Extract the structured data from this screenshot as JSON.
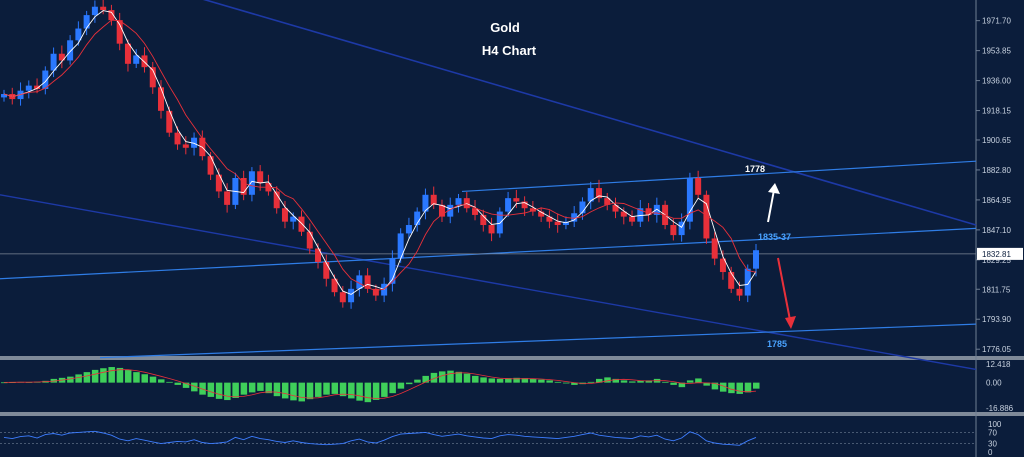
{
  "chart_data": {
    "type": "candlestick",
    "title": "Gold",
    "subtitle": "H4 Chart",
    "price_axis": {
      "ticks": [
        "1971.70",
        "1953.85",
        "1936.00",
        "1918.15",
        "1900.65",
        "1882.80",
        "1864.95",
        "1847.10",
        "1829.25",
        "1811.75",
        "1793.90",
        "1776.05"
      ],
      "tick_values": [
        1971.7,
        1953.85,
        1936.0,
        1918.15,
        1900.65,
        1882.8,
        1864.95,
        1847.1,
        1829.25,
        1811.75,
        1793.9,
        1776.05
      ],
      "ylim": [
        1772.0,
        1984.0
      ],
      "current_price": "1832.81",
      "current_value": 1832.81
    },
    "close_path": [
      1928,
      1925,
      1930,
      1933,
      1931,
      1942,
      1952,
      1948,
      1960,
      1967,
      1975,
      1980,
      1978,
      1972,
      1958,
      1946,
      1951,
      1944,
      1932,
      1918,
      1905,
      1898,
      1896,
      1902,
      1891,
      1880,
      1870,
      1862,
      1878,
      1868,
      1882,
      1875,
      1870,
      1860,
      1852,
      1855,
      1846,
      1836,
      1828,
      1818,
      1810,
      1804,
      1812,
      1820,
      1812,
      1808,
      1815,
      1830,
      1845,
      1850,
      1858,
      1868,
      1862,
      1855,
      1862,
      1866,
      1860,
      1856,
      1850,
      1845,
      1858,
      1866,
      1864,
      1860,
      1858,
      1855,
      1852,
      1850,
      1852,
      1857,
      1864,
      1872,
      1866,
      1862,
      1858,
      1855,
      1852,
      1860,
      1856,
      1862,
      1850,
      1844,
      1852,
      1878,
      1868,
      1842,
      1830,
      1822,
      1812,
      1808,
      1824,
      1835
    ],
    "annotations": [
      {
        "text": "1778",
        "color": "#ffffff"
      },
      {
        "text": "1835-37",
        "color": "#4aa3ff"
      },
      {
        "text": "1785",
        "color": "#4aa3ff"
      }
    ],
    "indicator_macd": {
      "ticks": [
        "12.418",
        "0.00",
        "-16.886"
      ],
      "histogram": [
        0.2,
        0.3,
        0.5,
        0.4,
        0.6,
        1.2,
        2.5,
        3.2,
        4.0,
        5.5,
        7.0,
        8.5,
        9.6,
        10.4,
        9.8,
        8.4,
        7.0,
        5.6,
        4.0,
        2.2,
        0.5,
        -1.5,
        -3.5,
        -5.8,
        -8.0,
        -9.5,
        -10.8,
        -11.6,
        -10.2,
        -8.0,
        -6.5,
        -5.5,
        -7.0,
        -9.0,
        -10.5,
        -11.8,
        -12.5,
        -11.0,
        -9.5,
        -8.0,
        -7.5,
        -9.0,
        -10.5,
        -12.0,
        -13.0,
        -11.5,
        -9.5,
        -7.0,
        -4.0,
        -1.0,
        2.0,
        4.5,
        6.5,
        7.5,
        8.0,
        7.2,
        6.0,
        4.5,
        3.5,
        2.8,
        2.5,
        3.0,
        3.2,
        3.0,
        2.6,
        2.0,
        1.5,
        0.5,
        -0.5,
        -1.5,
        -1.0,
        0.5,
        2.5,
        3.5,
        2.5,
        1.5,
        0.8,
        1.2,
        1.5,
        2.5,
        0.5,
        -1.5,
        -3.0,
        1.5,
        2.8,
        -2.0,
        -4.5,
        -6.0,
        -7.0,
        -7.5,
        -6.5,
        -4.0
      ],
      "ylim": [
        -16.886,
        12.418
      ]
    },
    "indicator_rsi": {
      "ticks": [
        "100",
        "70",
        "30",
        "0"
      ],
      "values": [
        52,
        48,
        55,
        58,
        50,
        62,
        66,
        60,
        68,
        70,
        72,
        74,
        68,
        60,
        46,
        40,
        48,
        42,
        36,
        30,
        34,
        38,
        36,
        44,
        34,
        30,
        32,
        36,
        52,
        44,
        56,
        48,
        44,
        38,
        34,
        40,
        34,
        30,
        28,
        26,
        28,
        30,
        40,
        46,
        36,
        32,
        42,
        55,
        64,
        66,
        68,
        70,
        62,
        56,
        60,
        64,
        58,
        54,
        50,
        48,
        58,
        62,
        60,
        56,
        54,
        52,
        50,
        48,
        52,
        56,
        62,
        68,
        60,
        56,
        52,
        50,
        48,
        58,
        54,
        60,
        46,
        40,
        50,
        72,
        62,
        40,
        32,
        28,
        26,
        24,
        40,
        52
      ],
      "ylim": [
        0,
        100
      ]
    }
  }
}
